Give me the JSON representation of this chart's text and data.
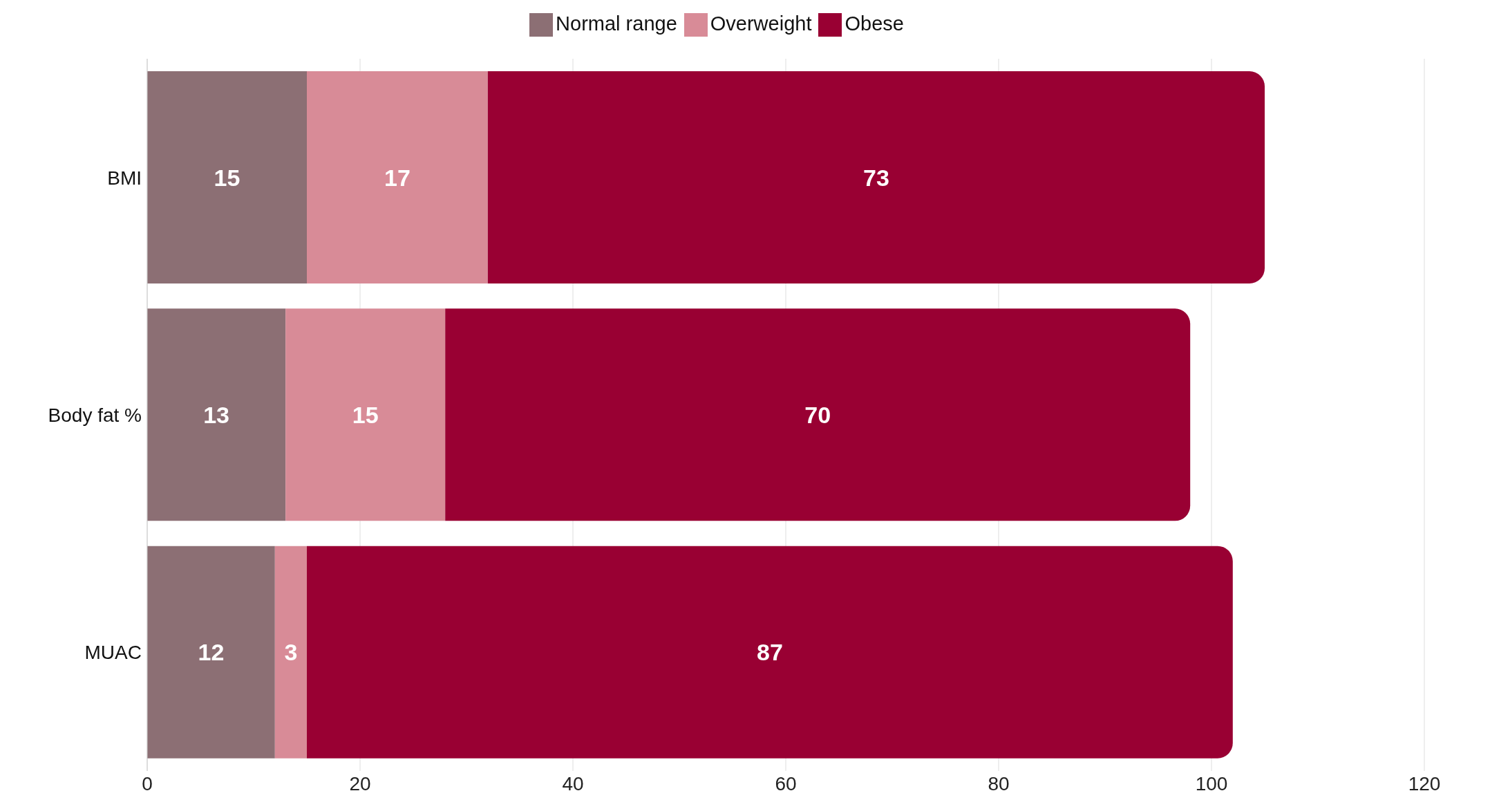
{
  "chart_data": {
    "type": "bar",
    "orientation": "horizontal",
    "stacked": true,
    "categories": [
      "BMI",
      "Body fat %",
      "MUAC"
    ],
    "series": [
      {
        "name": "Normal range",
        "color": "#8c6f74",
        "values": [
          15,
          13,
          12
        ]
      },
      {
        "name": "Overweight",
        "color": "#d88b97",
        "values": [
          17,
          15,
          3
        ]
      },
      {
        "name": "Obese",
        "color": "#990033",
        "values": [
          73,
          70,
          87
        ]
      }
    ],
    "xlim": [
      0,
      120
    ],
    "xticks": [
      0,
      20,
      40,
      60,
      80,
      100,
      120
    ],
    "grid": "x",
    "legend": "top",
    "data_labels": true
  }
}
